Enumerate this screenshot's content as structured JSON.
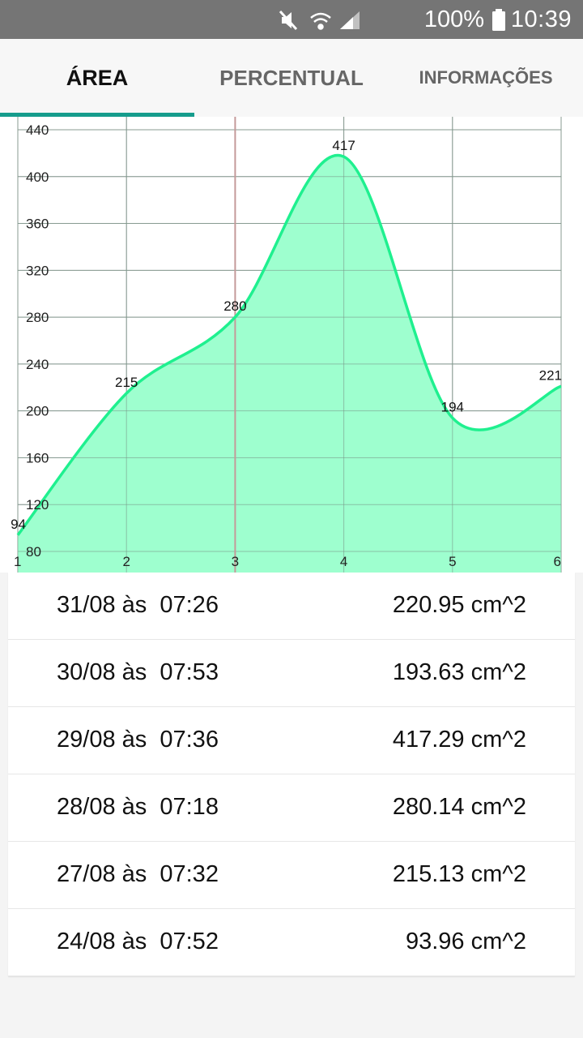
{
  "status_bar": {
    "icons": [
      "mute-icon",
      "wifi-icon",
      "signal-icon",
      "battery-icon"
    ],
    "battery": "100%",
    "time": "10:39"
  },
  "tabs": [
    {
      "label": "ÁREA",
      "selected": true
    },
    {
      "label": "PERCENTUAL",
      "selected": false
    },
    {
      "label": "INFORMAÇÕES",
      "selected": false
    }
  ],
  "colors": {
    "accent": "#169c8c",
    "line": "#1ff08f",
    "fill": "#9effcf",
    "highlight": "#c49a9a"
  },
  "chart_data": {
    "type": "area",
    "x": [
      1,
      2,
      3,
      4,
      5,
      6
    ],
    "values": [
      94,
      215,
      280,
      417,
      194,
      221
    ],
    "value_labels": [
      "94",
      "215",
      "280",
      "417",
      "194",
      "221"
    ],
    "xlim": [
      1,
      6
    ],
    "ylim": [
      80,
      440
    ],
    "y_ticks": [
      80,
      120,
      160,
      200,
      240,
      280,
      320,
      360,
      400,
      440
    ],
    "x_ticks": [
      1,
      2,
      3,
      4,
      5,
      6
    ],
    "highlight_x": 3,
    "grid": true
  },
  "entries": [
    {
      "date": "31/08 às  07:26",
      "value": "220.95 cm^2"
    },
    {
      "date": "30/08 às  07:53",
      "value": "193.63 cm^2"
    },
    {
      "date": "29/08 às  07:36",
      "value": "417.29 cm^2"
    },
    {
      "date": "28/08 às  07:18",
      "value": "280.14 cm^2"
    },
    {
      "date": "27/08 às  07:32",
      "value": "215.13 cm^2"
    },
    {
      "date": "24/08 às  07:52",
      "value": "93.96 cm^2"
    }
  ]
}
